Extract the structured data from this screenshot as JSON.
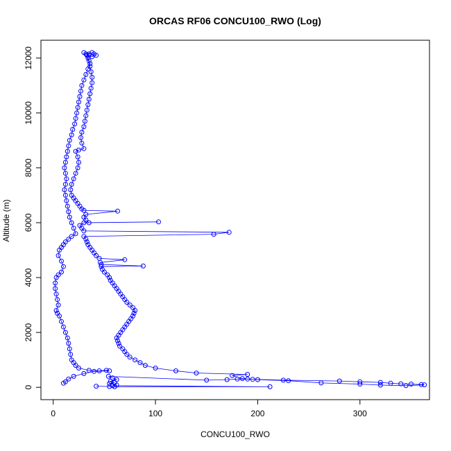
{
  "chart_data": {
    "type": "scatter",
    "title": "ORCAS RF06 CONCU100_RWO (Log)",
    "xlabel": "CONCU100_RWO",
    "ylabel": "Altitude (m)",
    "xlim": [
      -12,
      368
    ],
    "ylim": [
      -450,
      12650
    ],
    "xticks": [
      0,
      100,
      200,
      300
    ],
    "yticks": [
      0,
      2000,
      4000,
      6000,
      8000,
      10000,
      12000
    ],
    "grid": false,
    "legend": "none",
    "marker": "open-circle",
    "connected": true,
    "colors": {
      "series": "#0000ff",
      "axis": "#000000",
      "background": "#ffffff"
    },
    "series": [
      {
        "values": [
          [
            42,
            40
          ],
          [
            55,
            30
          ],
          [
            60,
            20
          ],
          [
            212,
            20
          ],
          [
            58,
            60
          ],
          [
            62,
            80
          ],
          [
            55,
            140
          ],
          [
            60,
            170
          ],
          [
            56,
            220
          ],
          [
            62,
            280
          ],
          [
            58,
            340
          ],
          [
            54,
            400
          ],
          [
            150,
            260
          ],
          [
            170,
            280
          ],
          [
            180,
            300
          ],
          [
            190,
            300
          ],
          [
            195,
            290
          ],
          [
            225,
            260
          ],
          [
            280,
            230
          ],
          [
            300,
            200
          ],
          [
            320,
            180
          ],
          [
            330,
            150
          ],
          [
            340,
            130
          ],
          [
            350,
            120
          ],
          [
            360,
            100
          ],
          [
            363,
            90
          ],
          [
            345,
            60
          ],
          [
            320,
            80
          ],
          [
            300,
            120
          ],
          [
            262,
            160
          ],
          [
            230,
            240
          ],
          [
            200,
            280
          ],
          [
            185,
            320
          ],
          [
            175,
            430
          ],
          [
            190,
            470
          ],
          [
            140,
            520
          ],
          [
            120,
            600
          ],
          [
            100,
            700
          ],
          [
            90,
            800
          ],
          [
            85,
            900
          ],
          [
            80,
            1000
          ],
          [
            75,
            1100
          ],
          [
            72,
            1200
          ],
          [
            70,
            1300
          ],
          [
            68,
            1400
          ],
          [
            65,
            1500
          ],
          [
            64,
            1600
          ],
          [
            63,
            1700
          ],
          [
            62,
            1800
          ],
          [
            64,
            1900
          ],
          [
            66,
            2000
          ],
          [
            68,
            2100
          ],
          [
            70,
            2200
          ],
          [
            72,
            2300
          ],
          [
            74,
            2400
          ],
          [
            76,
            2500
          ],
          [
            78,
            2600
          ],
          [
            79,
            2700
          ],
          [
            80,
            2800
          ],
          [
            78,
            2900
          ],
          [
            75,
            3000
          ],
          [
            72,
            3100
          ],
          [
            70,
            3200
          ],
          [
            68,
            3300
          ],
          [
            66,
            3400
          ],
          [
            64,
            3500
          ],
          [
            62,
            3600
          ],
          [
            60,
            3700
          ],
          [
            58,
            3800
          ],
          [
            56,
            3900
          ],
          [
            55,
            4000
          ],
          [
            53,
            4100
          ],
          [
            50,
            4200
          ],
          [
            48,
            4300
          ],
          [
            47,
            4400
          ],
          [
            88,
            4420
          ],
          [
            47,
            4480
          ],
          [
            46,
            4550
          ],
          [
            70,
            4650
          ],
          [
            45,
            4700
          ],
          [
            42,
            4800
          ],
          [
            40,
            4900
          ],
          [
            38,
            5000
          ],
          [
            36,
            5100
          ],
          [
            34,
            5200
          ],
          [
            33,
            5300
          ],
          [
            32,
            5400
          ],
          [
            30,
            5500
          ],
          [
            157,
            5580
          ],
          [
            172,
            5650
          ],
          [
            30,
            5700
          ],
          [
            28,
            5800
          ],
          [
            26,
            5900
          ],
          [
            30,
            6000
          ],
          [
            103,
            6030
          ],
          [
            35,
            6000
          ],
          [
            32,
            6100
          ],
          [
            30,
            6200
          ],
          [
            32,
            6300
          ],
          [
            63,
            6420
          ],
          [
            30,
            6450
          ],
          [
            28,
            6500
          ],
          [
            26,
            6600
          ],
          [
            24,
            6700
          ],
          [
            22,
            6800
          ],
          [
            20,
            6900
          ],
          [
            18,
            7000
          ],
          [
            17,
            7200
          ],
          [
            18,
            7400
          ],
          [
            20,
            7600
          ],
          [
            22,
            7800
          ],
          [
            24,
            8000
          ],
          [
            25,
            8200
          ],
          [
            24,
            8400
          ],
          [
            22,
            8600
          ],
          [
            25,
            8650
          ],
          [
            30,
            8700
          ],
          [
            28,
            8900
          ],
          [
            27,
            9100
          ],
          [
            28,
            9300
          ],
          [
            30,
            9500
          ],
          [
            31,
            9700
          ],
          [
            32,
            9900
          ],
          [
            33,
            10100
          ],
          [
            34,
            10300
          ],
          [
            35,
            10500
          ],
          [
            36,
            10700
          ],
          [
            37,
            10900
          ],
          [
            38,
            11100
          ],
          [
            38,
            11300
          ],
          [
            37,
            11500
          ],
          [
            36,
            11700
          ],
          [
            35,
            11900
          ],
          [
            34,
            12000
          ],
          [
            33,
            12100
          ],
          [
            35,
            12150
          ],
          [
            38,
            12200
          ],
          [
            40,
            12150
          ],
          [
            42,
            12100
          ],
          [
            38,
            12050
          ],
          [
            35,
            12100
          ],
          [
            32,
            12150
          ],
          [
            30,
            12200
          ],
          [
            36,
            11800
          ],
          [
            34,
            11600
          ],
          [
            32,
            11400
          ],
          [
            30,
            11200
          ],
          [
            28,
            11000
          ],
          [
            27,
            10800
          ],
          [
            26,
            10600
          ],
          [
            25,
            10400
          ],
          [
            24,
            10200
          ],
          [
            23,
            10000
          ],
          [
            22,
            9800
          ],
          [
            21,
            9600
          ],
          [
            19,
            9400
          ],
          [
            18,
            9200
          ],
          [
            16,
            9000
          ],
          [
            15,
            8800
          ],
          [
            14,
            8600
          ],
          [
            13,
            8400
          ],
          [
            12,
            8200
          ],
          [
            11,
            8000
          ],
          [
            12,
            7800
          ],
          [
            13,
            7600
          ],
          [
            12,
            7400
          ],
          [
            11,
            7200
          ],
          [
            12,
            7000
          ],
          [
            13,
            6800
          ],
          [
            14,
            6600
          ],
          [
            15,
            6400
          ],
          [
            16,
            6200
          ],
          [
            18,
            6000
          ],
          [
            20,
            5800
          ],
          [
            22,
            5600
          ],
          [
            18,
            5500
          ],
          [
            15,
            5400
          ],
          [
            12,
            5300
          ],
          [
            10,
            5200
          ],
          [
            8,
            5100
          ],
          [
            6,
            5000
          ],
          [
            5,
            4800
          ],
          [
            8,
            4600
          ],
          [
            10,
            4400
          ],
          [
            8,
            4200
          ],
          [
            5,
            4100
          ],
          [
            3,
            4000
          ],
          [
            2,
            3800
          ],
          [
            2,
            3600
          ],
          [
            3,
            3400
          ],
          [
            4,
            3200
          ],
          [
            5,
            3000
          ],
          [
            3,
            2800
          ],
          [
            4,
            2700
          ],
          [
            6,
            2600
          ],
          [
            8,
            2400
          ],
          [
            10,
            2200
          ],
          [
            12,
            2000
          ],
          [
            14,
            1800
          ],
          [
            15,
            1600
          ],
          [
            16,
            1400
          ],
          [
            17,
            1200
          ],
          [
            18,
            1000
          ],
          [
            20,
            900
          ],
          [
            22,
            800
          ],
          [
            25,
            700
          ],
          [
            35,
            620
          ],
          [
            45,
            600
          ],
          [
            52,
            620
          ],
          [
            55,
            600
          ],
          [
            40,
            580
          ],
          [
            30,
            500
          ],
          [
            20,
            400
          ],
          [
            15,
            300
          ],
          [
            12,
            200
          ],
          [
            10,
            150
          ]
        ]
      }
    ]
  }
}
